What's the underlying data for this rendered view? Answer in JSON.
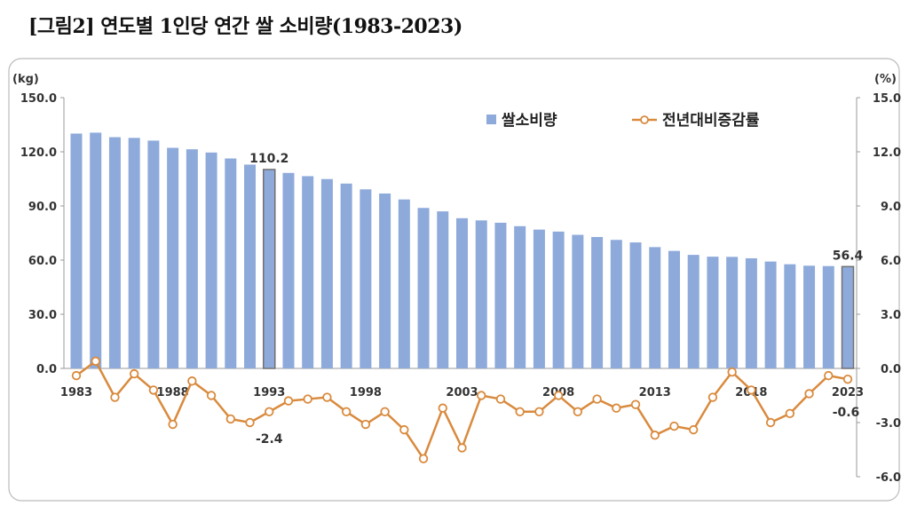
{
  "title": "[그림2] 연도별 1인당 연간 쌀 소비량(1983-2023)",
  "chart_data": {
    "type": "bar+line",
    "left_axis": {
      "unit_label": "(kg)",
      "ylim": [
        0,
        150
      ],
      "ticks": [
        "0.0",
        "30.0",
        "60.0",
        "90.0",
        "120.0",
        "150.0"
      ]
    },
    "right_axis": {
      "unit_label": "(%)",
      "ylim": [
        -6,
        15
      ],
      "ticks": [
        "-6.0",
        "-3.0",
        "0.0",
        "3.0",
        "6.0",
        "9.0",
        "12.0",
        "15.0"
      ]
    },
    "x_tick_labels": [
      "1983",
      "1988",
      "1993",
      "1998",
      "2003",
      "2008",
      "2013",
      "2018",
      "2023"
    ],
    "years": [
      1983,
      1984,
      1985,
      1986,
      1987,
      1988,
      1989,
      1990,
      1991,
      1992,
      1993,
      1994,
      1995,
      1996,
      1997,
      1998,
      1999,
      2000,
      2001,
      2002,
      2003,
      2004,
      2005,
      2006,
      2007,
      2008,
      2009,
      2010,
      2011,
      2012,
      2013,
      2014,
      2015,
      2016,
      2017,
      2018,
      2019,
      2020,
      2021,
      2022,
      2023
    ],
    "series": [
      {
        "name": "쌀소비량",
        "type": "bar",
        "axis": "left",
        "color": "#8eaadb",
        "values": [
          130.1,
          130.6,
          128.1,
          127.7,
          126.2,
          122.2,
          121.4,
          119.6,
          116.3,
          112.9,
          110.2,
          108.3,
          106.5,
          104.9,
          102.4,
          99.2,
          96.9,
          93.6,
          88.9,
          87.0,
          83.2,
          82.0,
          80.7,
          78.8,
          76.9,
          75.8,
          74.0,
          72.8,
          71.2,
          69.8,
          67.2,
          65.1,
          62.9,
          61.9,
          61.8,
          61.0,
          59.2,
          57.7,
          56.9,
          56.7,
          56.4
        ]
      },
      {
        "name": "전년대비증감률",
        "type": "line",
        "axis": "right",
        "color": "#d98a3d",
        "values": [
          -0.4,
          0.4,
          -1.6,
          -0.3,
          -1.2,
          -3.1,
          -0.7,
          -1.5,
          -2.8,
          -3.0,
          -2.4,
          -1.8,
          -1.7,
          -1.6,
          -2.4,
          -3.1,
          -2.4,
          -3.4,
          -5.0,
          -2.2,
          -4.4,
          -1.5,
          -1.7,
          -2.4,
          -2.4,
          -1.5,
          -2.4,
          -1.7,
          -2.2,
          -2.0,
          -3.7,
          -3.2,
          -3.4,
          -1.6,
          -0.2,
          -1.2,
          -3.0,
          -2.5,
          -1.4,
          -0.4,
          -0.6
        ]
      }
    ],
    "annotations": [
      {
        "year": 1993,
        "series": "쌀소비량",
        "text": "110.2"
      },
      {
        "year": 2023,
        "series": "쌀소비량",
        "text": "56.4"
      },
      {
        "year": 1993,
        "series": "전년대비증감률",
        "text": "-2.4"
      },
      {
        "year": 2023,
        "series": "전년대비증감률",
        "text": "-0.6"
      }
    ],
    "highlight_years": [
      1993,
      2023
    ],
    "legend": "top-right",
    "grid": false
  }
}
